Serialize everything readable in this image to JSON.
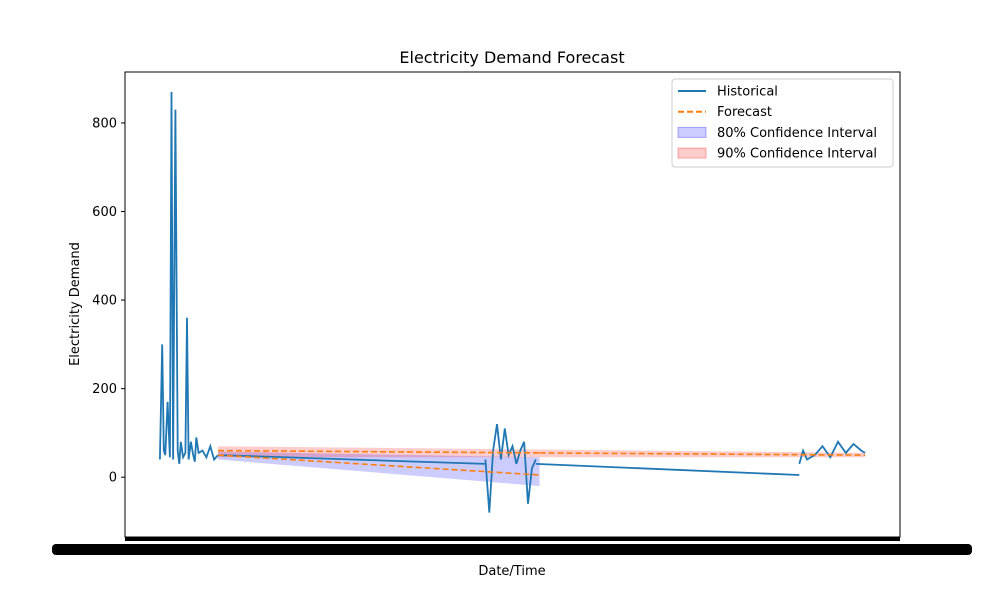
{
  "chart_data": {
    "type": "line",
    "title": "Electricity Demand Forecast",
    "xlabel": "Date/Time",
    "ylabel": "Electricity Demand",
    "ylim": [
      -135,
      915
    ],
    "yticks": [
      0,
      200,
      400,
      600,
      800
    ],
    "x_ticks_note": "dense overlapping date tick labels",
    "grid": false,
    "legend_placement": "top-right",
    "colors": {
      "historical": "#1f77b4",
      "forecast": "#ff7f0e",
      "ci80": "#0000ff",
      "ci90": "#ff0000"
    },
    "legend": [
      {
        "key": "historical",
        "label": "Historical",
        "style": "solid-line"
      },
      {
        "key": "forecast",
        "label": "Forecast",
        "style": "dashed-line"
      },
      {
        "key": "ci80",
        "label": "80% Confidence Interval",
        "style": "patch"
      },
      {
        "key": "ci90",
        "label": "90% Confidence Interval",
        "style": "patch"
      }
    ],
    "series": [
      {
        "name": "Historical",
        "segments": [
          {
            "x": [
              0.045,
              0.048,
              0.05,
              0.052,
              0.055,
              0.058,
              0.06,
              0.062,
              0.065,
              0.068,
              0.07,
              0.072,
              0.075,
              0.078,
              0.08,
              0.082,
              0.085,
              0.088,
              0.09,
              0.092,
              0.095,
              0.1,
              0.105,
              0.11,
              0.115,
              0.12
            ],
            "y": [
              40,
              300,
              60,
              50,
              170,
              45,
              870,
              40,
              830,
              60,
              30,
              80,
              45,
              55,
              360,
              40,
              80,
              50,
              35,
              90,
              55,
              60,
              45,
              70,
              40,
              50
            ]
          },
          {
            "x": [
              0.12,
              0.465
            ],
            "y": [
              50,
              30
            ]
          },
          {
            "x": [
              0.465,
              0.47,
              0.475,
              0.48,
              0.485,
              0.49,
              0.495,
              0.5,
              0.505,
              0.51,
              0.515,
              0.52,
              0.525,
              0.53
            ],
            "y": [
              40,
              -80,
              60,
              120,
              40,
              110,
              50,
              70,
              30,
              60,
              80,
              -60,
              20,
              40
            ]
          },
          {
            "x": [
              0.53,
              0.87
            ],
            "y": [
              30,
              5
            ]
          },
          {
            "x": [
              0.87,
              0.875,
              0.88,
              0.89,
              0.9,
              0.91,
              0.92,
              0.93,
              0.94,
              0.95,
              0.955
            ],
            "y": [
              30,
              60,
              40,
              50,
              70,
              45,
              80,
              55,
              75,
              60,
              55
            ]
          }
        ]
      },
      {
        "name": "Forecast",
        "segments": [
          {
            "x": [
              0.12,
              0.535
            ],
            "y": [
              50,
              5
            ]
          },
          {
            "x": [
              0.12,
              0.535
            ],
            "y": [
              60,
              55
            ]
          },
          {
            "x": [
              0.535,
              0.955
            ],
            "y": [
              55,
              50
            ]
          }
        ]
      }
    ],
    "bands": [
      {
        "name": "80% Confidence Interval",
        "x": [
          0.12,
          0.535
        ],
        "upper": [
          58,
          45
        ],
        "lower": [
          40,
          -20
        ]
      },
      {
        "name": "90% Confidence Interval",
        "x": [
          0.12,
          0.955
        ],
        "upper": [
          70,
          55
        ],
        "lower": [
          45,
          45
        ]
      }
    ]
  }
}
